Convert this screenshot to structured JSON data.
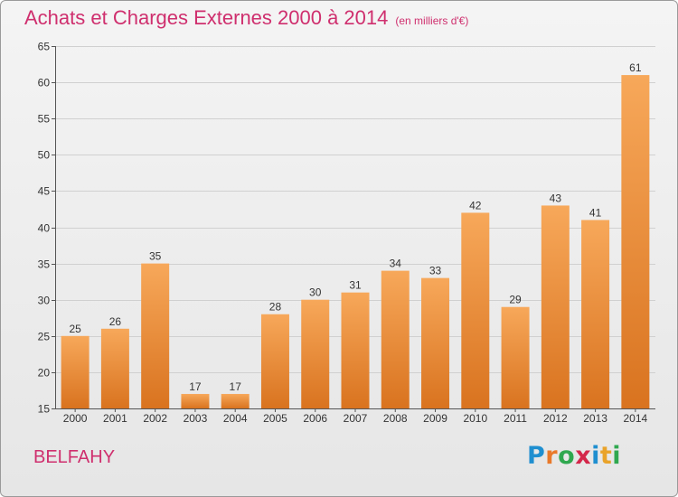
{
  "header": {
    "title": "Achats et Charges Externes 2000 à 2014",
    "subtitle": "(en milliers d'€)"
  },
  "footer": {
    "place": "BELFAHY",
    "logo_letters": [
      {
        "char": "P",
        "color": "#1f8fd0"
      },
      {
        "char": "r",
        "color": "#e9792a"
      },
      {
        "char": "o",
        "color": "#2fa84f"
      },
      {
        "char": "x",
        "color": "#d4274a"
      },
      {
        "char": "i",
        "color": "#1f8fd0"
      },
      {
        "char": "t",
        "color": "#e9a32a"
      },
      {
        "char": "i",
        "color": "#2fa84f"
      }
    ]
  },
  "chart_data": {
    "type": "bar",
    "title": "Achats et Charges Externes 2000 à 2014",
    "subtitle": "(en milliers d'€)",
    "categories": [
      "2000",
      "2001",
      "2002",
      "2003",
      "2004",
      "2005",
      "2006",
      "2007",
      "2008",
      "2009",
      "2010",
      "2011",
      "2012",
      "2013",
      "2014"
    ],
    "values": [
      25,
      26,
      35,
      17,
      17,
      28,
      30,
      31,
      34,
      33,
      42,
      29,
      43,
      41,
      61
    ],
    "ylim": [
      15,
      65
    ],
    "yticks": [
      15,
      20,
      25,
      30,
      35,
      40,
      45,
      50,
      55,
      60,
      65
    ],
    "grid": true,
    "data_labels": true,
    "colors": {
      "bar_top": "#f7a85a",
      "bar_bottom": "#d9731f",
      "grid": "#d0d0d0",
      "axis": "#555555",
      "text": "#333333"
    }
  }
}
